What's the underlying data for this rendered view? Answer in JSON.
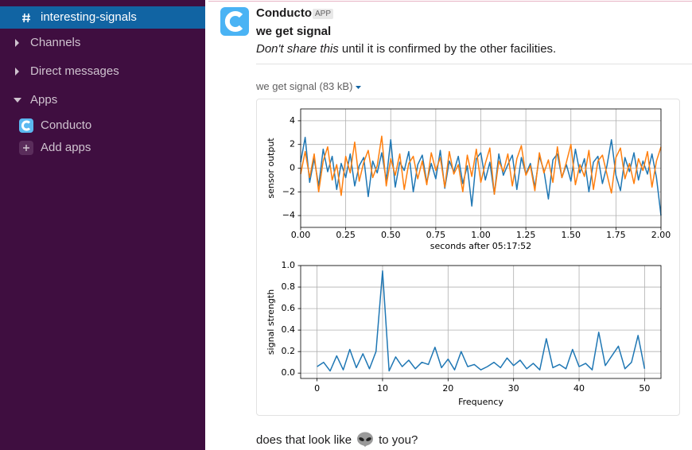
{
  "sidebar": {
    "active_channel": "interesting-signals",
    "sections": [
      "Channels",
      "Direct messages",
      "Apps"
    ],
    "apps": [
      "Conducto"
    ],
    "add_apps": "Add apps"
  },
  "message": {
    "author": "Conducto",
    "badge": "APP",
    "title": "we get signal",
    "emphasis": "Don't share this",
    "text": "until it is confirmed by the other facilities.",
    "file": "we get signal (83 kB)"
  },
  "reply": {
    "before": "does that look like",
    "after": "to you?"
  },
  "chart_data": [
    {
      "type": "line",
      "ylabel": "sensor output",
      "xlabel": "seconds after 05:17:52",
      "x": [
        0,
        0.025,
        0.05,
        0.075,
        0.1,
        0.125,
        0.15,
        0.175,
        0.2,
        0.225,
        0.25,
        0.275,
        0.3,
        0.325,
        0.35,
        0.375,
        0.4,
        0.425,
        0.45,
        0.475,
        0.5,
        0.525,
        0.55,
        0.575,
        0.6,
        0.625,
        0.65,
        0.675,
        0.7,
        0.725,
        0.75,
        0.775,
        0.8,
        0.825,
        0.85,
        0.875,
        0.9,
        0.925,
        0.95,
        0.975,
        1,
        1.025,
        1.05,
        1.075,
        1.1,
        1.125,
        1.15,
        1.175,
        1.2,
        1.225,
        1.25,
        1.275,
        1.3,
        1.325,
        1.35,
        1.375,
        1.4,
        1.425,
        1.45,
        1.475,
        1.5,
        1.525,
        1.55,
        1.575,
        1.6,
        1.625,
        1.65,
        1.675,
        1.7,
        1.725,
        1.75,
        1.775,
        1.8,
        1.825,
        1.85,
        1.875,
        1.9,
        1.925,
        1.95,
        1.975,
        2
      ],
      "series": [
        {
          "color": "#1f77b4",
          "values": [
            0.5,
            2.6,
            -1.2,
            0.8,
            -1.5,
            1.6,
            -0.3,
            1.0,
            -1.8,
            0.4,
            -0.8,
            1.2,
            -1.5,
            0.2,
            0.9,
            -2.4,
            0.6,
            -0.4,
            1.3,
            -1.0,
            2.4,
            -1.6,
            0.5,
            -0.2,
            1.4,
            -2.0,
            0.3,
            1.1,
            -1.2,
            0.4,
            -0.9,
            1.5,
            -1.7,
            0.6,
            -0.3,
            1.0,
            -1.3,
            0.2,
            -3.2,
            0.8,
            1.3,
            -1.0,
            0.5,
            -2.2,
            1.2,
            -0.6,
            0.3,
            1.1,
            -1.8,
            0.9,
            -0.5,
            0.4,
            -1.6,
            1.0,
            -0.2,
            -2.6,
            0.7,
            1.2,
            -0.8,
            0.3,
            -1.1,
            1.6,
            -0.4,
            0.8,
            -2.0,
            0.5,
            1.0,
            -1.3,
            0.2,
            2.4,
            -0.6,
            -1.9,
            0.9,
            -0.3,
            1.3,
            -1.0,
            0.6,
            -0.5,
            1.2,
            -0.8,
            -4.0
          ]
        },
        {
          "color": "#ff7f0e",
          "values": [
            -0.5,
            1.4,
            -0.8,
            1.2,
            -2.0,
            0.6,
            1.8,
            -1.0,
            0.3,
            -2.3,
            1.0,
            -0.4,
            2.2,
            -1.1,
            0.5,
            1.5,
            -0.8,
            0.2,
            2.7,
            -1.5,
            0.8,
            -0.6,
            1.2,
            -1.8,
            0.4,
            1.0,
            -0.9,
            0.6,
            -1.4,
            1.3,
            -0.2,
            0.9,
            -1.6,
            1.4,
            -0.5,
            0.3,
            -2.0,
            1.1,
            -0.7,
            1.6,
            -1.2,
            0.4,
            1.7,
            -2.2,
            0.6,
            -0.3,
            1.2,
            -1.5,
            0.8,
            1.9,
            -0.6,
            0.2,
            -1.9,
            1.3,
            -0.4,
            0.7,
            -1.2,
            1.8,
            -0.8,
            0.5,
            2.0,
            -1.4,
            0.3,
            -0.7,
            1.5,
            -1.8,
            0.6,
            1.1,
            -0.5,
            -2.1,
            0.9,
            1.7,
            -0.9,
            0.4,
            -1.3,
            0.8,
            -0.2,
            1.4,
            -1.6,
            0.6,
            1.8
          ]
        }
      ],
      "xlim": [
        0,
        2
      ],
      "ylim": [
        -5,
        5
      ],
      "xticks": [
        {
          "value": 0,
          "label": "0.00"
        },
        0.25,
        {
          "value": 0.5,
          "label": "0.50"
        },
        0.75,
        {
          "value": 1,
          "label": "1.00"
        },
        1.25,
        {
          "value": 1.5,
          "label": "1.50"
        },
        1.75,
        {
          "value": 2,
          "label": "2.00"
        }
      ],
      "yticks": [
        {
          "value": -4,
          "label": "−4"
        },
        {
          "value": -2,
          "label": "−2"
        },
        0,
        2,
        4
      ],
      "grid": true
    },
    {
      "type": "line",
      "ylabel": "signal strength",
      "xlabel": "Frequency",
      "x": [
        0,
        1,
        2,
        3,
        4,
        5,
        6,
        7,
        8,
        9,
        10,
        11,
        12,
        13,
        14,
        15,
        16,
        17,
        18,
        19,
        20,
        21,
        22,
        23,
        24,
        25,
        26,
        27,
        28,
        29,
        30,
        31,
        32,
        33,
        34,
        35,
        36,
        37,
        38,
        39,
        40,
        41,
        42,
        43,
        44,
        45,
        46,
        47,
        48,
        49,
        50
      ],
      "series": [
        {
          "color": "#1f77b4",
          "values": [
            0.06,
            0.1,
            0.02,
            0.16,
            0.03,
            0.22,
            0.05,
            0.18,
            0.04,
            0.2,
            0.95,
            0.02,
            0.15,
            0.06,
            0.12,
            0.04,
            0.1,
            0.08,
            0.24,
            0.05,
            0.13,
            0.03,
            0.2,
            0.06,
            0.08,
            0.03,
            0.06,
            0.1,
            0.05,
            0.14,
            0.07,
            0.12,
            0.04,
            0.09,
            0.03,
            0.32,
            0.05,
            0.08,
            0.04,
            0.22,
            0.06,
            0.09,
            0.03,
            0.38,
            0.07,
            0.16,
            0.25,
            0.04,
            0.1,
            0.35,
            0.04
          ]
        }
      ],
      "xlim": [
        -2.5,
        52.5
      ],
      "ylim": [
        -0.05,
        1.0
      ],
      "xticks": [
        0,
        10,
        20,
        30,
        40,
        50
      ],
      "yticks": [
        {
          "value": 0,
          "label": "0.0"
        },
        0.2,
        0.4,
        0.6,
        0.8,
        {
          "value": 1,
          "label": "1.0"
        }
      ],
      "grid": true
    }
  ]
}
